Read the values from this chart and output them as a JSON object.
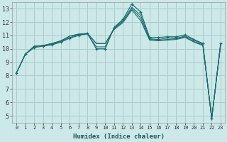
{
  "xlabel": "Humidex (Indice chaleur)",
  "xlim": [
    -0.5,
    23.5
  ],
  "ylim": [
    4.5,
    13.5
  ],
  "yticks": [
    5,
    6,
    7,
    8,
    9,
    10,
    11,
    12,
    13
  ],
  "xticks": [
    0,
    1,
    2,
    3,
    4,
    5,
    6,
    7,
    8,
    9,
    10,
    11,
    12,
    13,
    14,
    15,
    16,
    17,
    18,
    19,
    20,
    21,
    22,
    23
  ],
  "bg_color": "#cce8e8",
  "grid_color": "#aacccc",
  "line_color": "#1a6b6b",
  "lines": [
    [
      8.2,
      9.6,
      10.1,
      10.2,
      10.3,
      10.5,
      10.8,
      11.0,
      11.15,
      10.0,
      10.0,
      11.6,
      12.2,
      13.35,
      12.75,
      10.85,
      10.85,
      10.9,
      10.9,
      11.05,
      10.7,
      10.4,
      4.8,
      10.4
    ],
    [
      8.2,
      9.6,
      10.15,
      10.25,
      10.35,
      10.55,
      10.85,
      11.05,
      11.1,
      10.15,
      10.15,
      11.55,
      12.1,
      13.1,
      12.5,
      10.75,
      10.7,
      10.8,
      10.8,
      10.95,
      10.65,
      10.35,
      4.8,
      10.35
    ],
    [
      8.2,
      9.6,
      10.2,
      10.25,
      10.4,
      10.6,
      10.95,
      11.1,
      11.15,
      10.4,
      10.4,
      11.5,
      12.05,
      13.0,
      12.3,
      10.7,
      10.65,
      10.7,
      10.75,
      10.9,
      10.55,
      10.3,
      4.8,
      10.3
    ],
    [
      8.2,
      9.6,
      10.2,
      10.25,
      10.4,
      10.6,
      10.95,
      11.1,
      11.15,
      10.4,
      10.4,
      11.45,
      11.95,
      12.9,
      12.1,
      10.65,
      10.6,
      10.65,
      10.7,
      10.85,
      10.5,
      10.25,
      4.8,
      10.3
    ]
  ],
  "xlabel_fontsize": 6.5,
  "xtick_fontsize": 5.0,
  "ytick_fontsize": 6.0
}
